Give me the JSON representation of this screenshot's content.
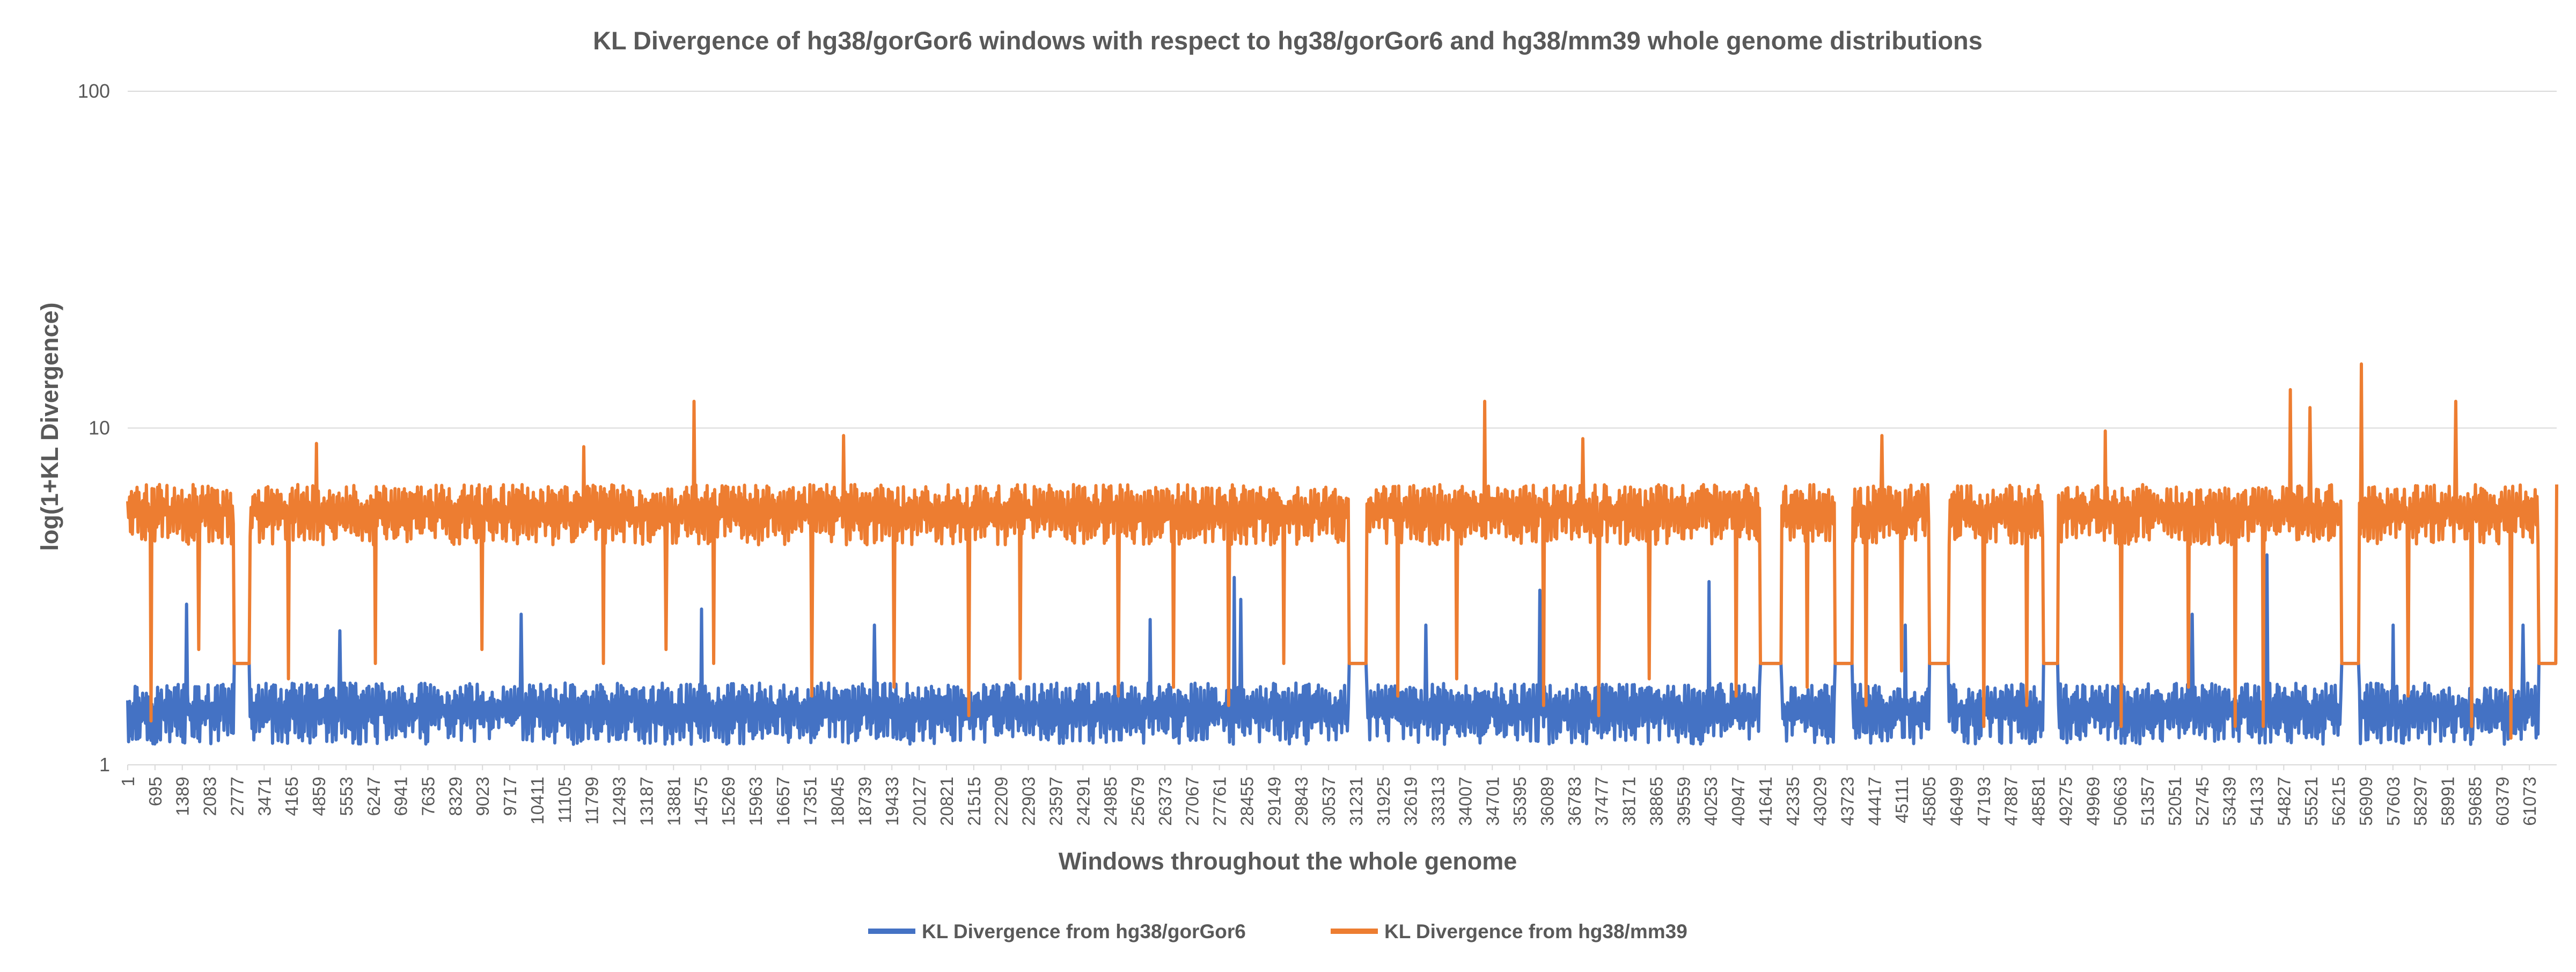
{
  "chart_data": {
    "type": "line",
    "title": "KL Divergence of hg38/gorGor6 windows with respect to hg38/gorGor6 and hg38/mm39 whole genome distributions",
    "xlabel": "Windows throughout the whole genome",
    "ylabel": "log(1+KL Divergence)",
    "y_scale": "log",
    "ylim": [
      1,
      100
    ],
    "y_ticks": [
      "1",
      "10",
      "100"
    ],
    "xlim": [
      1,
      61767
    ],
    "x_tick_labels": [
      "1",
      "695",
      "1389",
      "2083",
      "2777",
      "3471",
      "4165",
      "4859",
      "5553",
      "6247",
      "6941",
      "7635",
      "8329",
      "9023",
      "9717",
      "10411",
      "11105",
      "11799",
      "12493",
      "13187",
      "13881",
      "14575",
      "15269",
      "15963",
      "16657",
      "17351",
      "18045",
      "18739",
      "19433",
      "20127",
      "20821",
      "21515",
      "22209",
      "22903",
      "23597",
      "24291",
      "24985",
      "25679",
      "26373",
      "27067",
      "27761",
      "28455",
      "29149",
      "29843",
      "30537",
      "31231",
      "31925",
      "32619",
      "33313",
      "34007",
      "34701",
      "35395",
      "36089",
      "36783",
      "37477",
      "38171",
      "38865",
      "39559",
      "40253",
      "40947",
      "41641",
      "42335",
      "43029",
      "43723",
      "44417",
      "45111",
      "45805",
      "46499",
      "47193",
      "47887",
      "48581",
      "49275",
      "49969",
      "50663",
      "51357",
      "52051",
      "52745",
      "53439",
      "54133",
      "54827",
      "55521",
      "56215",
      "56909",
      "57603",
      "58297",
      "58991",
      "59685",
      "60379",
      "61073"
    ],
    "gridlines": true,
    "legend_position": "bottom",
    "series": [
      {
        "name": "KL Divergence from hg38/gorGor6",
        "color": "#4472C4",
        "typical_band": [
          1.15,
          1.75
        ],
        "gaps": [
          [
            2700,
            3100
          ],
          [
            31050,
            31500
          ],
          [
            41500,
            42050
          ],
          [
            43400,
            43850
          ],
          [
            45800,
            46300
          ],
          [
            48700,
            49100
          ],
          [
            56300,
            56750
          ],
          [
            61300,
            61767
          ]
        ],
        "gap_value": 2.0,
        "spikes": [
          [
            1500,
            3.0
          ],
          [
            5400,
            2.5
          ],
          [
            10000,
            2.8
          ],
          [
            14600,
            2.9
          ],
          [
            19000,
            2.6
          ],
          [
            26000,
            2.7
          ],
          [
            28150,
            3.6
          ],
          [
            28300,
            3.1
          ],
          [
            33000,
            2.6
          ],
          [
            35900,
            3.3
          ],
          [
            40200,
            3.5
          ],
          [
            45200,
            2.6
          ],
          [
            52500,
            2.8
          ],
          [
            54400,
            4.2
          ],
          [
            57600,
            2.6
          ],
          [
            60900,
            2.6
          ]
        ]
      },
      {
        "name": "KL Divergence from hg38/mm39",
        "color": "#ED7D31",
        "typical_band": [
          4.5,
          6.8
        ],
        "gaps": [
          [
            2700,
            3100
          ],
          [
            31050,
            31500
          ],
          [
            41500,
            42050
          ],
          [
            43400,
            43850
          ],
          [
            45800,
            46300
          ],
          [
            48700,
            49100
          ],
          [
            56300,
            56750
          ],
          [
            61300,
            61767
          ]
        ],
        "gap_value": 2.0,
        "peaks": [
          [
            4800,
            9.0
          ],
          [
            11600,
            8.8
          ],
          [
            14400,
            12.0
          ],
          [
            18200,
            9.5
          ],
          [
            34500,
            12.0
          ],
          [
            37000,
            9.3
          ],
          [
            44600,
            9.5
          ],
          [
            50300,
            9.8
          ],
          [
            55000,
            13.0
          ],
          [
            55500,
            11.5
          ],
          [
            56800,
            15.5
          ],
          [
            59200,
            12.0
          ],
          [
            61767,
            6.8
          ]
        ],
        "dips": [
          [
            600,
            1.35
          ],
          [
            1800,
            2.2
          ],
          [
            4100,
            1.8
          ],
          [
            6300,
            2.0
          ],
          [
            9000,
            2.2
          ],
          [
            12100,
            2.0
          ],
          [
            13700,
            2.2
          ],
          [
            14900,
            2.0
          ],
          [
            17400,
            1.6
          ],
          [
            19500,
            1.7
          ],
          [
            21400,
            1.4
          ],
          [
            22700,
            1.8
          ],
          [
            25200,
            1.6
          ],
          [
            26600,
            1.7
          ],
          [
            28000,
            1.5
          ],
          [
            29400,
            2.0
          ],
          [
            32300,
            1.6
          ],
          [
            33800,
            1.8
          ],
          [
            36000,
            1.5
          ],
          [
            37400,
            1.4
          ],
          [
            38700,
            1.8
          ],
          [
            40900,
            1.6
          ],
          [
            42700,
            1.7
          ],
          [
            44200,
            1.5
          ],
          [
            45100,
            1.9
          ],
          [
            47200,
            1.3
          ],
          [
            48300,
            1.5
          ],
          [
            50700,
            1.3
          ],
          [
            52400,
            1.7
          ],
          [
            53600,
            1.3
          ],
          [
            54300,
            1.3
          ],
          [
            58000,
            1.6
          ],
          [
            59600,
            1.3
          ],
          [
            60600,
            1.2
          ]
        ]
      }
    ]
  }
}
